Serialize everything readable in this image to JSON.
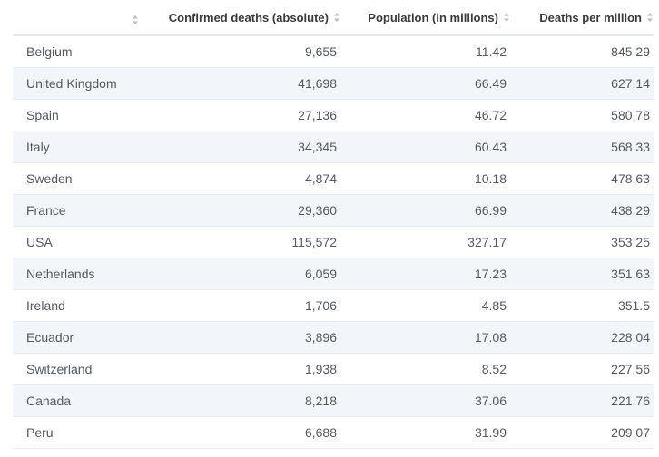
{
  "chart_data": {
    "type": "table",
    "columns": [
      "",
      "Confirmed deaths (absolute)",
      "Population (in millions)",
      "Deaths per million"
    ],
    "rows": [
      {
        "country": "Belgium",
        "deaths": "9,655",
        "population": "11.42",
        "per_million": "845.29"
      },
      {
        "country": "United Kingdom",
        "deaths": "41,698",
        "population": "66.49",
        "per_million": "627.14"
      },
      {
        "country": "Spain",
        "deaths": "27,136",
        "population": "46.72",
        "per_million": "580.78"
      },
      {
        "country": "Italy",
        "deaths": "34,345",
        "population": "60.43",
        "per_million": "568.33"
      },
      {
        "country": "Sweden",
        "deaths": "4,874",
        "population": "10.18",
        "per_million": "478.63"
      },
      {
        "country": "France",
        "deaths": "29,360",
        "population": "66.99",
        "per_million": "438.29"
      },
      {
        "country": "USA",
        "deaths": "115,572",
        "population": "327.17",
        "per_million": "353.25"
      },
      {
        "country": "Netherlands",
        "deaths": "6,059",
        "population": "17.23",
        "per_million": "351.63"
      },
      {
        "country": "Ireland",
        "deaths": "1,706",
        "population": "4.85",
        "per_million": "351.5"
      },
      {
        "country": "Ecuador",
        "deaths": "3,896",
        "population": "17.08",
        "per_million": "228.04"
      },
      {
        "country": "Switzerland",
        "deaths": "1,938",
        "population": "8.52",
        "per_million": "227.56"
      },
      {
        "country": "Canada",
        "deaths": "8,218",
        "population": "37.06",
        "per_million": "221.76"
      },
      {
        "country": "Peru",
        "deaths": "6,688",
        "population": "31.99",
        "per_million": "209.07"
      }
    ]
  },
  "colors": {
    "header_text": "#3a3a3a",
    "cell_text": "#555a5f",
    "stripe": "#f2f6fa",
    "row_border": "#e8ebee",
    "header_border": "#e4e7ea",
    "sort_icon": "#b9bec4"
  },
  "icons": {
    "sort": "sort-arrows-icon"
  }
}
